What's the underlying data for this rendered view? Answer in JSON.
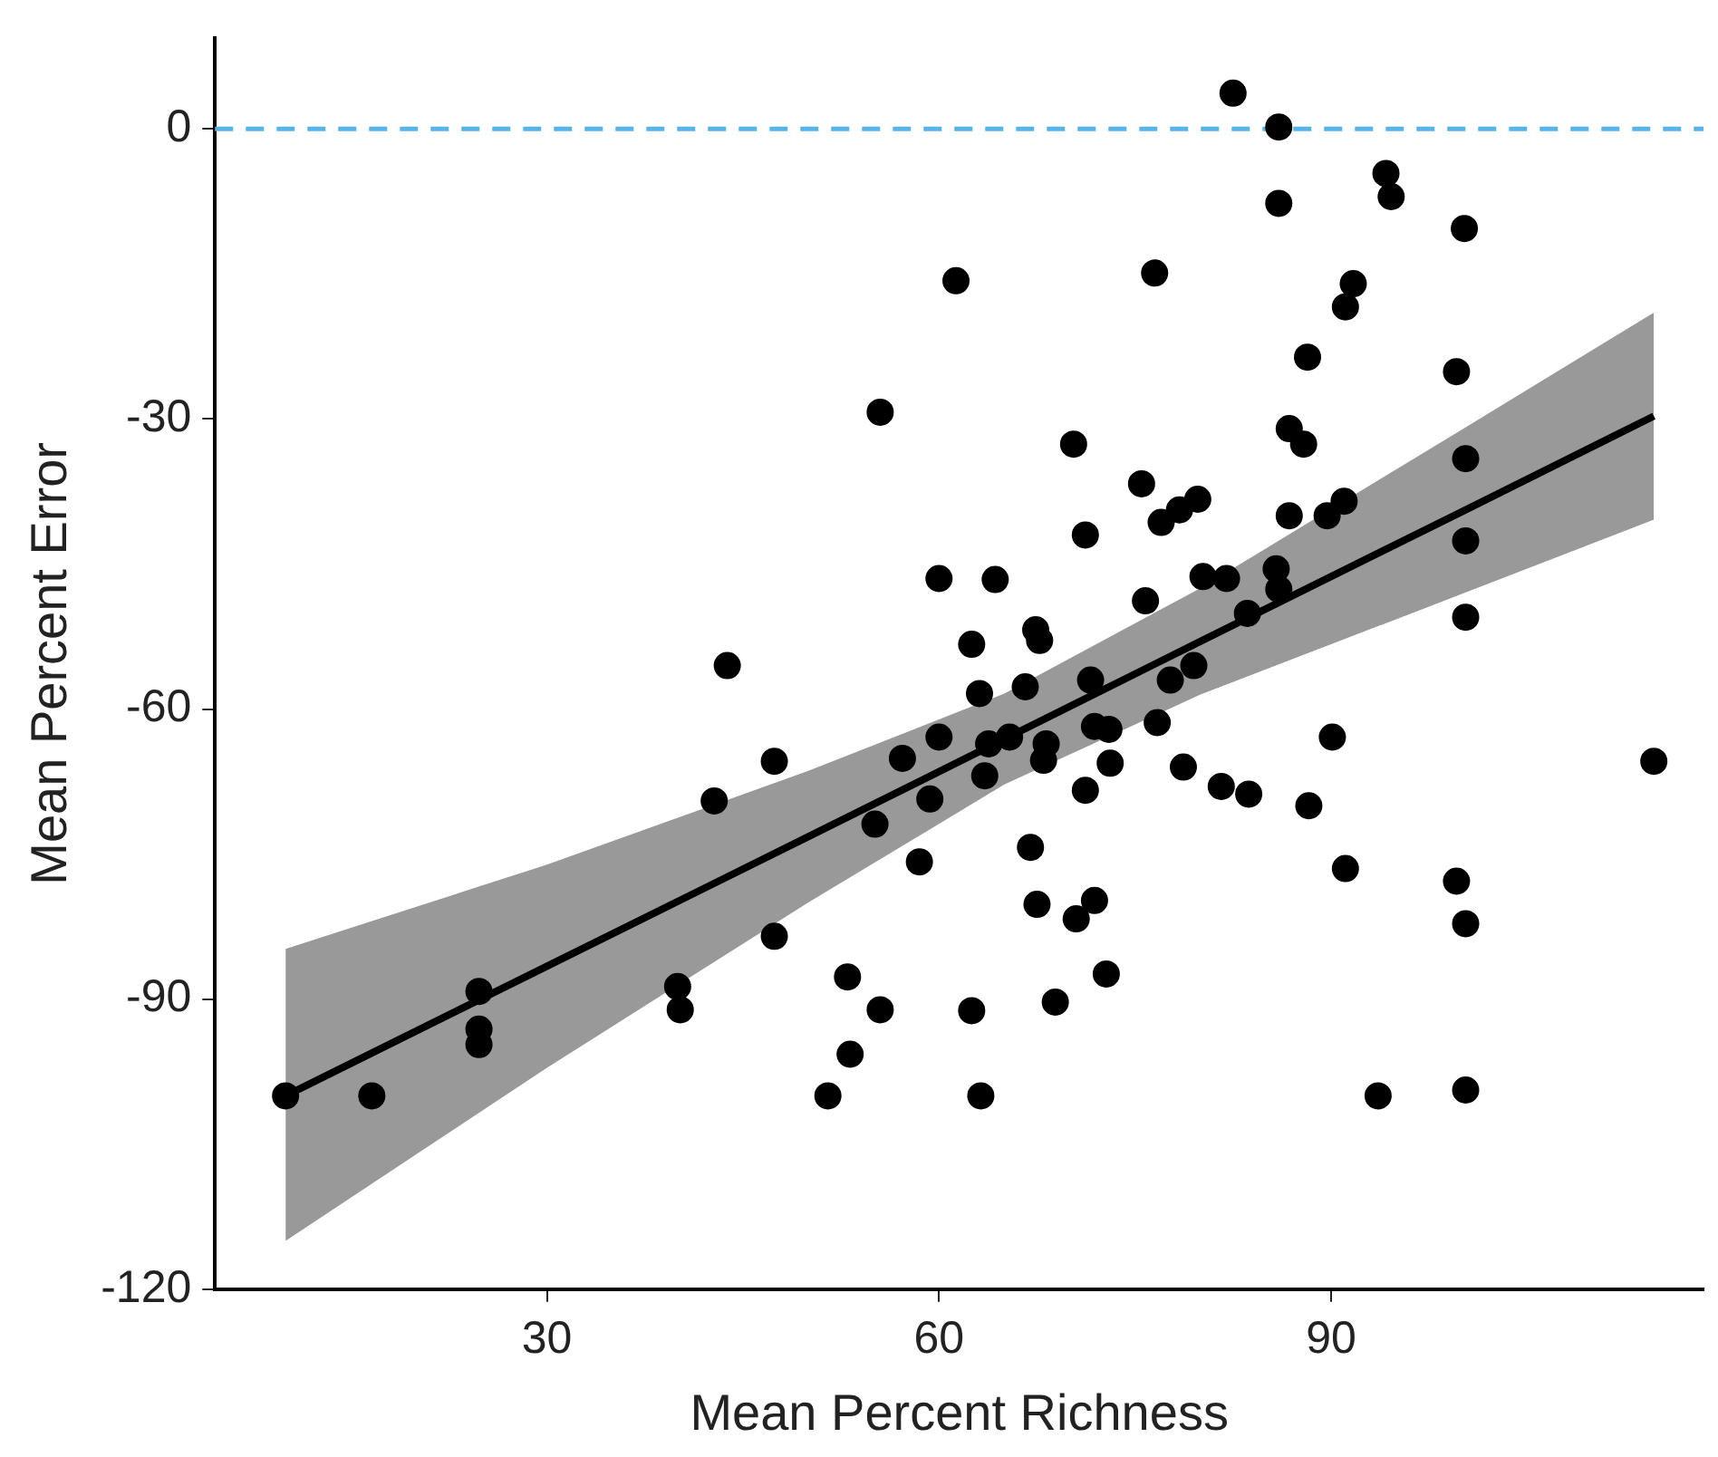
{
  "chart_data": {
    "type": "scatter",
    "xlabel": "Mean Percent Richness",
    "ylabel": "Mean Percent Error",
    "xlim": [
      4.6,
      118.5
    ],
    "xticks": [
      30,
      60,
      90
    ],
    "ylim": [
      -120,
      9.4
    ],
    "yticks": [
      -120,
      -90,
      -60,
      -30,
      0
    ],
    "grid": false,
    "marker": "circle",
    "ref_lines": [
      {
        "axis": "y",
        "value": 0,
        "color": "#56b4e9",
        "line_style": "dashed"
      }
    ],
    "series": [
      {
        "color": "#000000",
        "x": [
          10,
          16.6,
          24.8,
          24.8,
          24.8,
          43.8,
          47.4,
          42.8,
          40.0,
          40.2,
          47.4,
          61.3,
          76.5,
          55.5,
          70.3,
          75.5,
          78.4,
          79.8,
          77.0,
          71.2,
          60.0,
          64.3,
          80.2,
          82.0,
          75.8,
          83.6,
          67.4,
          67.7,
          62.5,
          79.5,
          77.7,
          71.6,
          63.1,
          66.6,
          60.0,
          63.8,
          65.4,
          57.2,
          71.9,
          73.0,
          68.2,
          68.0,
          76.7,
          73.1,
          78.7,
          63.5,
          59.3,
          81.6,
          83.7,
          71.2,
          55.1,
          67.0,
          58.5,
          67.5,
          71.9,
          70.5,
          72.8,
          53.0,
          68.9,
          55.5,
          62.5,
          53.2,
          51.5,
          63.2,
          82.5,
          86.0,
          86.0,
          94.2,
          94.6,
          100.2,
          91.7,
          91.1,
          88.2,
          99.6,
          86.8,
          87.9,
          100.3,
          86.8,
          89.7,
          91.0,
          100.3,
          85.8,
          86.0,
          100.3,
          90.1,
          114.7,
          88.3,
          91.1,
          99.6,
          100.3,
          100.3,
          93.6
        ],
        "values": [
          -100,
          -100,
          -89.2,
          -93.1,
          -94.7,
          -55.5,
          -65.4,
          -69.5,
          -88.7,
          -91.1,
          -83.5,
          -15.7,
          -14.9,
          -29.3,
          -32.6,
          -36.7,
          -39.4,
          -38.3,
          -40.7,
          -42.0,
          -46.5,
          -46.6,
          -46.3,
          -46.5,
          -48.8,
          -50.1,
          -51.8,
          -52.9,
          -53.3,
          -55.5,
          -57.0,
          -57.0,
          -58.4,
          -57.7,
          -62.9,
          -63.6,
          -62.9,
          -65.1,
          -61.8,
          -62.1,
          -63.6,
          -65.3,
          -61.4,
          -65.6,
          -66.0,
          -66.9,
          -69.3,
          -68.0,
          -68.8,
          -68.4,
          -71.9,
          -74.3,
          -75.8,
          -80.2,
          -79.8,
          -81.7,
          -87.4,
          -87.7,
          -90.3,
          -91.1,
          -91.2,
          -95.7,
          -100,
          -100,
          3.7,
          0.2,
          -7.7,
          -4.6,
          -7.0,
          -10.3,
          -16.0,
          -18.4,
          -23.6,
          -25.1,
          -31.0,
          -32.6,
          -34.1,
          -40.0,
          -40.0,
          -38.5,
          -42.6,
          -45.5,
          -47.6,
          -50.5,
          -62.9,
          -65.4,
          -70.0,
          -76.5,
          -77.8,
          -82.2,
          -99.4,
          -100
        ]
      },
      {
        "type": "line",
        "color": "#000000",
        "marker": "none",
        "x": [
          10,
          30,
          50,
          65,
          80,
          100,
          114.7
        ],
        "values": [
          -100,
          -86.6,
          -73.2,
          -63.1,
          -53.0,
          -39.6,
          -29.7
        ],
        "lower": [
          -115,
          -97.1,
          -80.0,
          -67.8,
          -58.5,
          -48.1,
          -40.4
        ],
        "upper": [
          -84.8,
          -76.1,
          -66.4,
          -58.4,
          -47.5,
          -31.1,
          -19.0
        ]
      }
    ]
  }
}
